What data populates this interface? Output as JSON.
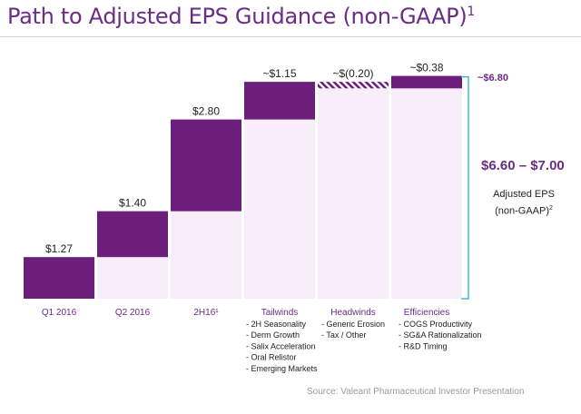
{
  "title": "Path to Adjusted EPS Guidance (non-GAAP)",
  "title_sup": "1",
  "source": "Source: Valeant Pharmaceutical Investor Presentation",
  "colors": {
    "bar": "#6b1f7b",
    "base": "#f7eefa",
    "bracket": "#3fb8d8",
    "label": "#6b2c86"
  },
  "right_panel": {
    "total_label": "~$6.80",
    "range_label": "$6.60 – $7.00",
    "range_desc_line1": "Adjusted EPS",
    "range_desc_line2": "(non-GAAP)",
    "range_desc_sup": "2"
  },
  "chart_data": {
    "type": "bar",
    "subtype": "waterfall",
    "title": "Path to Adjusted EPS Guidance (non-GAAP)",
    "categories": [
      "Q1 2016",
      "Q2 2016",
      "2H16¹",
      "Tailwinds",
      "Headwinds",
      "Efficiencies"
    ],
    "value_labels": [
      "$1.27",
      "$1.40",
      "$2.80",
      "~$1.15",
      "~$(0.20)",
      "~$0.38"
    ],
    "values": [
      1.27,
      1.4,
      2.8,
      1.15,
      -0.2,
      0.38
    ],
    "cumulative_totals": [
      1.27,
      2.67,
      5.47,
      6.62,
      6.42,
      6.8
    ],
    "final_total": 6.8,
    "guidance_range": [
      6.6,
      7.0
    ],
    "category_details": [
      [],
      [],
      [],
      [
        "2H Seasonality",
        "Derm Growth",
        "Salix Acceleration",
        "Oral Relistor",
        "Emerging Markets"
      ],
      [
        "Generic Erosion",
        "Tax / Other"
      ],
      [
        "COGS Productivity",
        "SG&A Rationalization",
        "R&D Timing"
      ]
    ],
    "ylim": [
      0,
      6.9
    ],
    "grid": false,
    "legend": "none"
  }
}
